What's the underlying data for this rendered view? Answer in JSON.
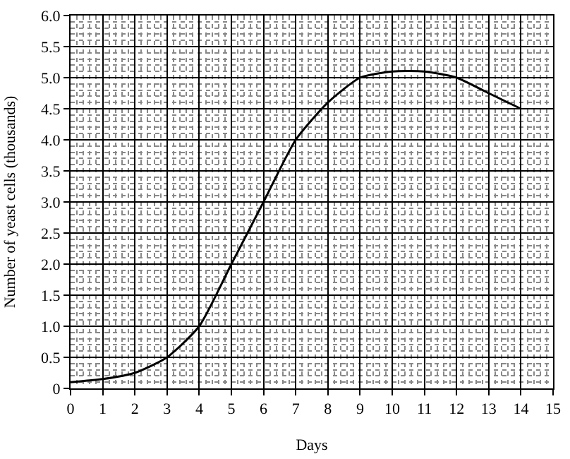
{
  "chart_data": {
    "type": "line",
    "xlabel": "Days",
    "ylabel": "Number of yeast cells (thousands)",
    "x": [
      0,
      1,
      2,
      3,
      4,
      5,
      6,
      7,
      8,
      9,
      10,
      11,
      12,
      13,
      14
    ],
    "series": [
      {
        "color": "#000000",
        "values": [
          0.1,
          0.15,
          0.25,
          0.5,
          1.0,
          2.0,
          3.0,
          4.0,
          4.6,
          5.0,
          5.1,
          5.1,
          5.0,
          4.75,
          4.5
        ]
      }
    ],
    "xlim": [
      0,
      15
    ],
    "xticks": [
      0,
      1,
      2,
      3,
      4,
      5,
      6,
      7,
      8,
      9,
      10,
      11,
      12,
      13,
      14,
      15
    ],
    "ylim": [
      0,
      6
    ],
    "yticks": [
      {
        "value": 0,
        "label": "0"
      },
      {
        "value": 0.5,
        "label": "0.5"
      },
      {
        "value": 1,
        "label": "1.0"
      },
      {
        "value": 1.5,
        "label": "1.5"
      },
      {
        "value": 2,
        "label": "2.0"
      },
      {
        "value": 2.5,
        "label": "2.5"
      },
      {
        "value": 3,
        "label": "3.0"
      },
      {
        "value": 3.5,
        "label": "3.5"
      },
      {
        "value": 4,
        "label": "4.0"
      },
      {
        "value": 4.5,
        "label": "4.5"
      },
      {
        "value": 5,
        "label": "5.0"
      },
      {
        "value": 5.5,
        "label": "5.5"
      },
      {
        "value": 6,
        "label": "6.0"
      }
    ],
    "grid": true,
    "marker": "none",
    "line_style": "solid"
  }
}
